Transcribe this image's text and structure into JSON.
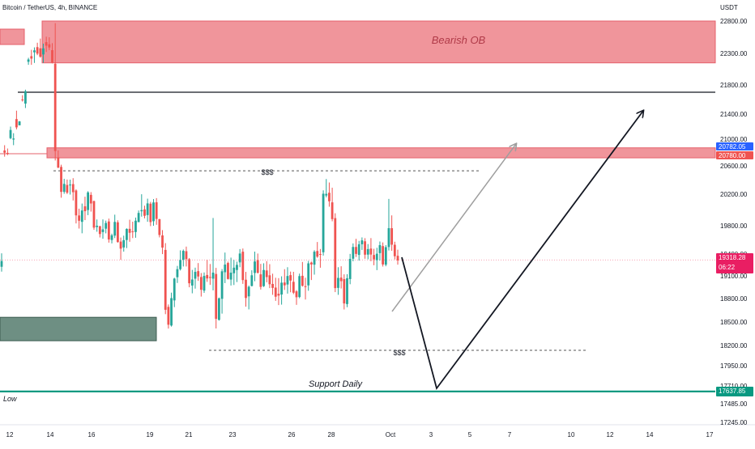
{
  "header": {
    "symbol_title": "Bitcoin / TetherUS, 4h, BINANCE",
    "currency_label": "USDT"
  },
  "colors": {
    "up": "#26a69a",
    "down": "#ef5350",
    "bearish_zone": "#f0959b",
    "bearish_border": "#e5606b",
    "bullish_zone": "#6e8f83",
    "support_line": "#089981",
    "blue_tag": "#2962ff"
  },
  "annotations": {
    "bearish_ob": "Bearish OB",
    "liquidity_upper": "$$$",
    "liquidity_lower": "$$$",
    "support_daily": "Support Daily",
    "low": "Low"
  },
  "chart_data": {
    "type": "candlestick",
    "y_tick_labels": [
      "22800.00",
      "22300.00",
      "21800.00",
      "21400.00",
      "21000.00",
      "20600.00",
      "20200.00",
      "19800.00",
      "19400.00",
      "19100.00",
      "18800.00",
      "18500.00",
      "18200.00",
      "17950.00",
      "17710.00",
      "17485.00",
      "17245.00"
    ],
    "x_tick_labels": [
      "12",
      "14",
      "16",
      "19",
      "21",
      "23",
      "26",
      "28",
      "Oct",
      "3",
      "5",
      "7",
      "10",
      "12",
      "14",
      "17"
    ],
    "price_tags": [
      {
        "label": "20782.05",
        "kind": "blue"
      },
      {
        "label": "20780.00",
        "kind": "red"
      },
      {
        "label": "19318.28",
        "sub": "06:22",
        "kind": "current"
      },
      {
        "label": "17637.85",
        "kind": "support"
      }
    ],
    "levels": {
      "resistance": 21700,
      "bearish_ob": [
        22150,
        22800
      ],
      "red_zone": [
        20720,
        20870
      ],
      "bullish_zone": [
        18260,
        18560
      ],
      "upper_liquidity": 20530,
      "lower_liquidity": 18140,
      "support_daily": 17640
    },
    "candles": [
      [
        19225,
        19410,
        19159,
        19304
      ],
      [
        20830,
        20909,
        20738,
        20797
      ],
      [
        20794,
        20860,
        20760,
        20791
      ],
      [
        21016,
        21200,
        20999,
        21146
      ],
      [
        20994,
        21095,
        20910,
        21010
      ],
      [
        21320,
        21447,
        21156,
        21188
      ],
      [
        21221,
        21289,
        21219,
        21283
      ],
      [
        21600,
        21659,
        21572,
        21596
      ],
      [
        21544,
        21735,
        21483,
        21714
      ],
      [
        22167,
        22230,
        22119,
        22204
      ],
      [
        22256,
        22355,
        22119,
        22217
      ],
      [
        22317,
        22393,
        22149,
        22347
      ],
      [
        22397,
        22465,
        22272,
        22296
      ],
      [
        22379,
        22529,
        22231,
        22248
      ],
      [
        22283,
        22451,
        22151,
        22377
      ],
      [
        22474,
        22558,
        22321,
        22419
      ],
      [
        22441,
        22549,
        22352,
        22391
      ],
      [
        22350,
        22458,
        22141,
        22156
      ],
      [
        22136,
        22767,
        20680,
        20822
      ],
      [
        20724,
        20833,
        20567,
        20576
      ],
      [
        20585,
        20617,
        20155,
        20232
      ],
      [
        20233,
        20417,
        20206,
        20345
      ],
      [
        20330,
        20407,
        20202,
        20221
      ],
      [
        20330,
        20405,
        20195,
        20335
      ],
      [
        20342,
        20426,
        20120,
        20228
      ],
      [
        20252,
        20268,
        19829,
        19931
      ],
      [
        19930,
        20016,
        19760,
        19863
      ],
      [
        19849,
        20081,
        19693,
        19993
      ],
      [
        20046,
        20168,
        19871,
        19984
      ],
      [
        19999,
        20242,
        19934,
        20225
      ],
      [
        20191,
        20229,
        19979,
        20082
      ],
      [
        20112,
        20118,
        19742,
        19773
      ],
      [
        19781,
        19879,
        19715,
        19800
      ],
      [
        19794,
        19797,
        19634,
        19683
      ],
      [
        19710,
        19880,
        19616,
        19748
      ],
      [
        19758,
        19865,
        19692,
        19835
      ],
      [
        19854,
        19890,
        19561,
        19606
      ],
      [
        19598,
        19688,
        19550,
        19665
      ],
      [
        19660,
        19940,
        19625,
        19848
      ],
      [
        19843,
        19869,
        19561,
        19569
      ],
      [
        19576,
        19633,
        19320,
        19476
      ],
      [
        19493,
        19660,
        19434,
        19596
      ],
      [
        19598,
        19763,
        19484,
        19755
      ],
      [
        19756,
        19876,
        19573,
        19700
      ],
      [
        19721,
        19851,
        19625,
        19714
      ],
      [
        19711,
        19903,
        19630,
        19864
      ],
      [
        19845,
        19993,
        19846,
        19962
      ],
      [
        19983,
        20199,
        19915,
        19998
      ],
      [
        20007,
        20054,
        19893,
        19926
      ],
      [
        19935,
        20143,
        19850,
        20083
      ],
      [
        20079,
        20102,
        19794,
        19846
      ],
      [
        19857,
        20138,
        19799,
        20095
      ],
      [
        20097,
        20150,
        19812,
        19886
      ],
      [
        19883,
        19887,
        19635,
        19669
      ],
      [
        19663,
        19738,
        19399,
        19491
      ],
      [
        19458,
        19554,
        18600,
        18656
      ],
      [
        18693,
        18724,
        18416,
        18465
      ],
      [
        18455,
        18878,
        18441,
        18805
      ],
      [
        18776,
        19075,
        18690,
        19064
      ],
      [
        19082,
        19237,
        19006,
        19192
      ],
      [
        19192,
        19452,
        19174,
        19319
      ],
      [
        19322,
        19464,
        19229,
        19445
      ],
      [
        19440,
        19505,
        19229,
        19331
      ],
      [
        19329,
        19345,
        18949,
        19002
      ],
      [
        18972,
        19182,
        18869,
        19052
      ],
      [
        19063,
        19213,
        18931,
        19155
      ],
      [
        19165,
        19276,
        19034,
        19092
      ],
      [
        19085,
        19139,
        18826,
        18916
      ],
      [
        18905,
        19147,
        18875,
        19099
      ],
      [
        19112,
        19320,
        19021,
        19066
      ],
      [
        19085,
        19263,
        18981,
        19073
      ],
      [
        19063,
        19898,
        18908,
        19145
      ],
      [
        19126,
        19210,
        18417,
        18540
      ],
      [
        18527,
        18813,
        18518,
        18803
      ],
      [
        18796,
        19194,
        18607,
        19163
      ],
      [
        19150,
        19421,
        19004,
        19255
      ],
      [
        19277,
        19296,
        19051,
        19059
      ],
      [
        19051,
        19351,
        18972,
        19144
      ],
      [
        19136,
        19319,
        18979,
        19213
      ],
      [
        19181,
        19295,
        19018,
        19251
      ],
      [
        19285,
        19470,
        19219,
        19407
      ],
      [
        19433,
        19478,
        18994,
        19044
      ],
      [
        19049,
        19155,
        18696,
        18807
      ],
      [
        18829,
        18972,
        18661,
        18955
      ],
      [
        18966,
        19177,
        18960,
        19108
      ],
      [
        19140,
        19434,
        19029,
        19298
      ],
      [
        19317,
        19407,
        19133,
        19142
      ],
      [
        19121,
        19265,
        18919,
        18954
      ],
      [
        18964,
        19273,
        18953,
        19181
      ],
      [
        19174,
        19303,
        19015,
        19084
      ],
      [
        19108,
        19261,
        18938,
        18989
      ],
      [
        18993,
        19130,
        18849,
        18941
      ],
      [
        18945,
        19075,
        18770,
        18824
      ],
      [
        18863,
        19070,
        18716,
        18839
      ],
      [
        18853,
        19094,
        18722,
        19010
      ],
      [
        19012,
        19192,
        18914,
        18975
      ],
      [
        18986,
        19219,
        18865,
        19098
      ],
      [
        19110,
        19159,
        18883,
        19038
      ],
      [
        19021,
        19156,
        18858,
        18877
      ],
      [
        18895,
        18911,
        18719,
        18817
      ],
      [
        18820,
        19131,
        18804,
        19097
      ],
      [
        19101,
        19291,
        18958,
        18969
      ],
      [
        18963,
        19075,
        18787,
        18960
      ],
      [
        18974,
        19306,
        18903,
        19272
      ],
      [
        19283,
        19297,
        19045,
        19257
      ],
      [
        19254,
        19454,
        19117,
        19433
      ],
      [
        19443,
        19570,
        19348,
        19364
      ],
      [
        19400,
        19471,
        19212,
        19392
      ],
      [
        19425,
        20254,
        19379,
        20206
      ],
      [
        20183,
        20414,
        20160,
        20204
      ],
      [
        20220,
        20365,
        20041,
        20110
      ],
      [
        20096,
        20291,
        19856,
        19884
      ],
      [
        19896,
        19958,
        18885,
        18938
      ],
      [
        18941,
        19219,
        18849,
        19073
      ],
      [
        19077,
        19232,
        18933,
        19030
      ],
      [
        19057,
        19121,
        18660,
        18737
      ],
      [
        18729,
        19123,
        18689,
        19068
      ],
      [
        19058,
        19402,
        18989,
        19333
      ],
      [
        19336,
        19550,
        19300,
        19500
      ],
      [
        19500,
        19615,
        19359,
        19402
      ],
      [
        19388,
        19586,
        19310,
        19538
      ],
      [
        19538,
        19635,
        19458,
        19593
      ],
      [
        19580,
        19624,
        19335,
        19391
      ],
      [
        19392,
        19541,
        19328,
        19470
      ],
      [
        19477,
        19625,
        19302,
        19393
      ],
      [
        19387,
        19474,
        19246,
        19327
      ],
      [
        19316,
        19488,
        19179,
        19404
      ],
      [
        19413,
        19577,
        19310,
        19525
      ],
      [
        19512,
        19564,
        19228,
        19257
      ],
      [
        19254,
        19526,
        19232,
        19497
      ],
      [
        19499,
        20140,
        19450,
        19765
      ],
      [
        19765,
        19931,
        19446,
        19532
      ],
      [
        19531,
        19574,
        19326,
        19370
      ],
      [
        19376,
        19461,
        19254,
        19312
      ]
    ]
  }
}
